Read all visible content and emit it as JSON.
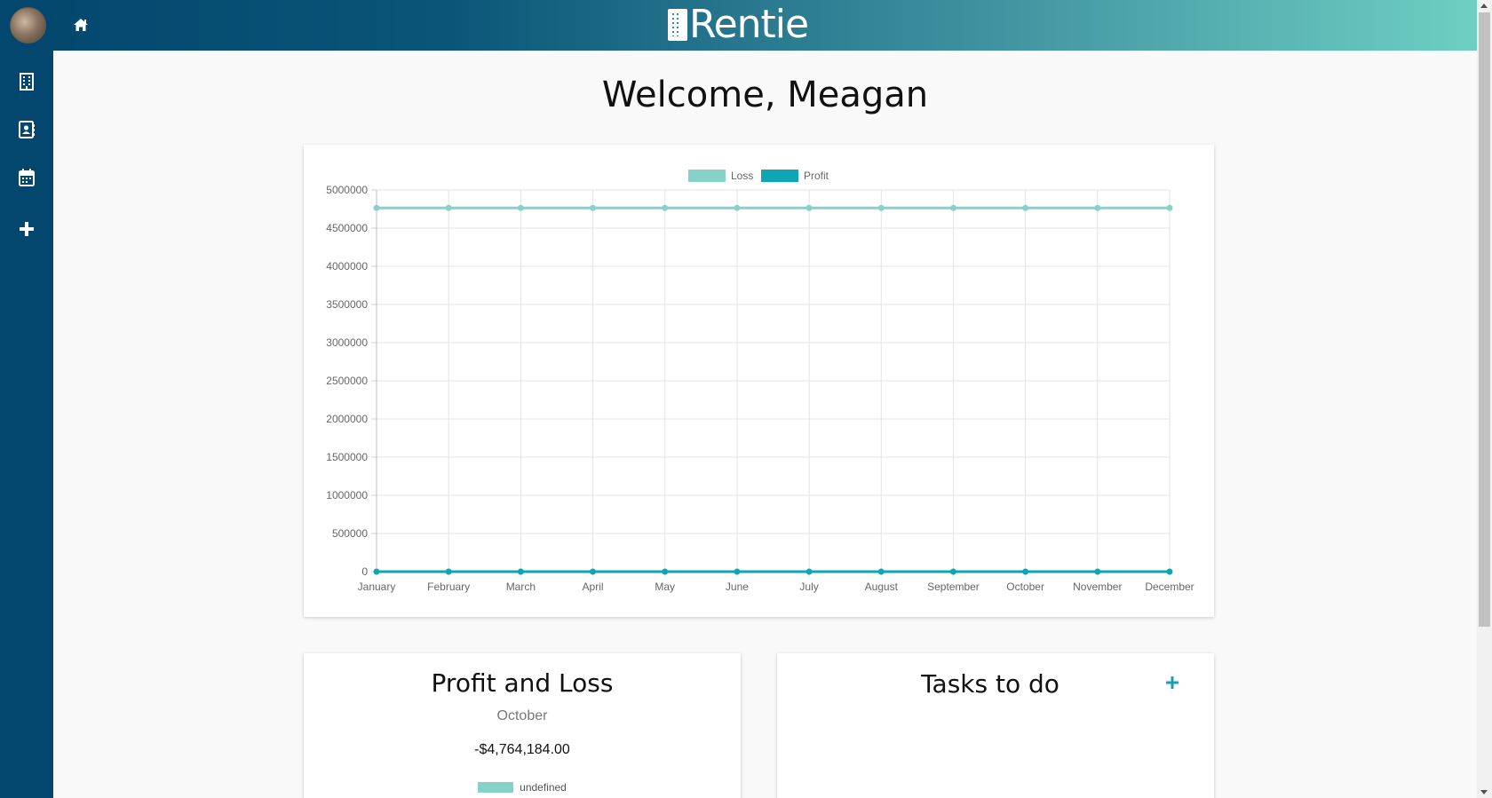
{
  "app": {
    "logo_text": "Rentie"
  },
  "header": {
    "welcome": "Welcome, Meagan"
  },
  "sidebar": {
    "items": [
      {
        "icon": "building-icon",
        "label": "Properties"
      },
      {
        "icon": "contacts-icon",
        "label": "Tenants"
      },
      {
        "icon": "calendar-icon",
        "label": "Calendar"
      },
      {
        "icon": "plus-icon",
        "label": "Add"
      }
    ]
  },
  "colors": {
    "loss": "#86d2c9",
    "profit": "#0ea5b5",
    "sidebar": "#03476e"
  },
  "chart_data": {
    "type": "line",
    "categories": [
      "January",
      "February",
      "March",
      "April",
      "May",
      "June",
      "July",
      "August",
      "September",
      "October",
      "November",
      "December"
    ],
    "series": [
      {
        "name": "Loss",
        "values": [
          4764184,
          4764184,
          4764184,
          4764184,
          4764184,
          4764184,
          4764184,
          4764184,
          4764184,
          4764184,
          4764184,
          4764184
        ]
      },
      {
        "name": "Profit",
        "values": [
          0,
          0,
          0,
          0,
          0,
          0,
          0,
          0,
          0,
          0,
          0,
          0
        ]
      }
    ],
    "y_ticks": [
      "0",
      "500000",
      "1000000",
      "1500000",
      "2000000",
      "2500000",
      "3000000",
      "3500000",
      "4000000",
      "4500000",
      "5000000"
    ],
    "ylim": [
      0,
      5000000
    ],
    "grid": true,
    "legend_position": "top"
  },
  "profit_loss": {
    "title": "Profit and Loss",
    "month": "October",
    "amount": "-$4,764,184.00",
    "legend_label": "undefined"
  },
  "tasks": {
    "title": "Tasks to do"
  }
}
